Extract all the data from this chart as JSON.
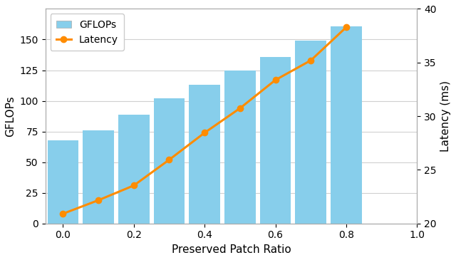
{
  "x": [
    0.0,
    0.1,
    0.2,
    0.3,
    0.4,
    0.5,
    0.6,
    0.7,
    0.8
  ],
  "gflops": [
    68,
    76,
    89,
    102,
    113,
    125,
    136,
    149,
    161
  ],
  "latency_left_axis": [
    8,
    19,
    31,
    52,
    74,
    94,
    117,
    133,
    160
  ],
  "bar_color": "#87CEEB",
  "line_color": "#FF8C00",
  "bar_width": 0.088,
  "xlim": [
    -0.05,
    1.0
  ],
  "ylim_left": [
    0,
    175
  ],
  "ylim_right": [
    20,
    40
  ],
  "yticks_left": [
    0,
    25,
    50,
    75,
    100,
    125,
    150
  ],
  "yticks_right": [
    20,
    25,
    30,
    35,
    40
  ],
  "xlabel": "Preserved Patch Ratio",
  "ylabel_left": "GFLOPs",
  "ylabel_right": "Latency (ms)",
  "legend_gflops": "GFLOPs",
  "legend_latency": "Latency",
  "xticks": [
    0.0,
    0.2,
    0.4,
    0.6,
    0.8,
    1.0
  ],
  "background_color": "#FFFFFF",
  "grid_color": "#D0D0D0"
}
